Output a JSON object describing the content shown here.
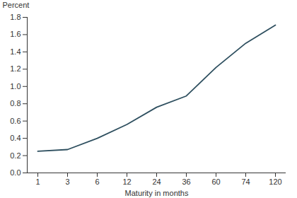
{
  "chart_data": {
    "type": "line",
    "x_label": "Maturity in months",
    "y_label": "Percent",
    "categories": [
      "1",
      "3",
      "6",
      "12",
      "24",
      "36",
      "60",
      "74",
      "120"
    ],
    "values": [
      0.25,
      0.27,
      0.4,
      0.56,
      0.76,
      0.89,
      1.22,
      1.5,
      1.71
    ],
    "color": "#2e4f5f",
    "ylim": [
      0,
      1.8
    ],
    "yticks": [
      {
        "value": 0,
        "label": "0.0"
      },
      0.2,
      0.4,
      0.6,
      0.8,
      {
        "value": 1,
        "label": "1.0"
      },
      1.2,
      1.4,
      1.6,
      1.8
    ],
    "grid": false
  }
}
